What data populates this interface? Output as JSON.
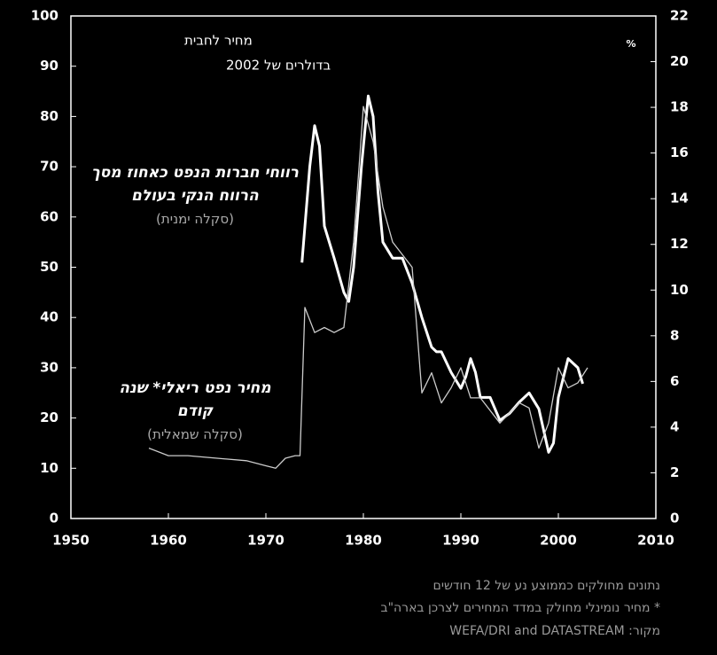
{
  "chart_data": {
    "type": "line",
    "title": [
      "מחיר לחבית",
      "בדולרים של 2002"
    ],
    "y2_unit": "%",
    "xlim": [
      1950,
      2010
    ],
    "xticks": [
      1950,
      1960,
      1970,
      1980,
      1990,
      2000,
      2010
    ],
    "ylim": [
      0,
      100
    ],
    "yticks": [
      0,
      10,
      20,
      30,
      40,
      50,
      60,
      70,
      80,
      90,
      100
    ],
    "y2lim": [
      0,
      22
    ],
    "y2ticks": [
      0,
      2,
      4,
      6,
      8,
      10,
      12,
      14,
      16,
      18,
      20,
      22
    ],
    "series": [
      {
        "name": "רווחי חברות הנפט כאחוז מסך הרווח הנקי בעולם",
        "scale_note": "(סקלה ימנית)",
        "color": "#ffffff",
        "axis": "y2",
        "x": [
          1973.7,
          1974.5,
          1975,
          1975.5,
          1976,
          1977,
          1978,
          1978.5,
          1979,
          1979.8,
          1980.5,
          1981,
          1981.5,
          1982,
          1983,
          1984,
          1985,
          1986,
          1987,
          1987.5,
          1988,
          1989,
          1990,
          1990.5,
          1991,
          1991.5,
          1992,
          1993,
          1994,
          1995,
          1996,
          1997,
          1998,
          1999,
          1999.5,
          2000,
          2001,
          2002,
          2002.5
        ],
        "values": [
          11.2,
          15.4,
          17.2,
          16.3,
          12.8,
          11.4,
          9.9,
          9.5,
          11,
          15.4,
          18.5,
          17.6,
          14.3,
          12.1,
          11.4,
          11.4,
          10.3,
          8.8,
          7.5,
          7.3,
          7.3,
          6.4,
          5.7,
          6.2,
          7.0,
          6.4,
          5.3,
          5.3,
          4.3,
          4.6,
          5.1,
          5.5,
          4.8,
          2.9,
          3.3,
          5.3,
          7.0,
          6.6,
          5.9
        ]
      },
      {
        "name": "מחיר נפט ריאלי* שנה קודם",
        "scale_note": "(סקלה שמאלית)",
        "color": "#cccccc",
        "x": [
          1958,
          1960,
          1962,
          1965,
          1968,
          1970,
          1971,
          1972,
          1973,
          1973.5,
          1974,
          1975,
          1976,
          1977,
          1978,
          1979,
          1980,
          1981,
          1982,
          1983,
          1985,
          1986,
          1987,
          1988,
          1989,
          1990,
          1991,
          1992,
          1994,
          1996,
          1997,
          1998,
          1999,
          2000,
          2001,
          2002,
          2003
        ],
        "values": [
          14,
          12.5,
          12.5,
          12,
          11.5,
          10.5,
          10,
          12,
          12.5,
          12.5,
          42,
          37,
          38,
          37,
          38,
          55,
          82,
          75,
          62,
          55,
          50,
          25,
          29,
          23,
          26,
          30,
          24,
          24,
          19,
          23,
          22,
          14,
          19,
          30,
          26,
          27,
          30
        ]
      }
    ],
    "footnotes": [
      "נתונים מחולקים כממוצע נע של 12 חודשים",
      "* מחיר נומינלי מחולק במדד המחירים לצרכן בארה\"ב",
      "מקור: WEFA/DRI and DATASTREAM"
    ]
  }
}
